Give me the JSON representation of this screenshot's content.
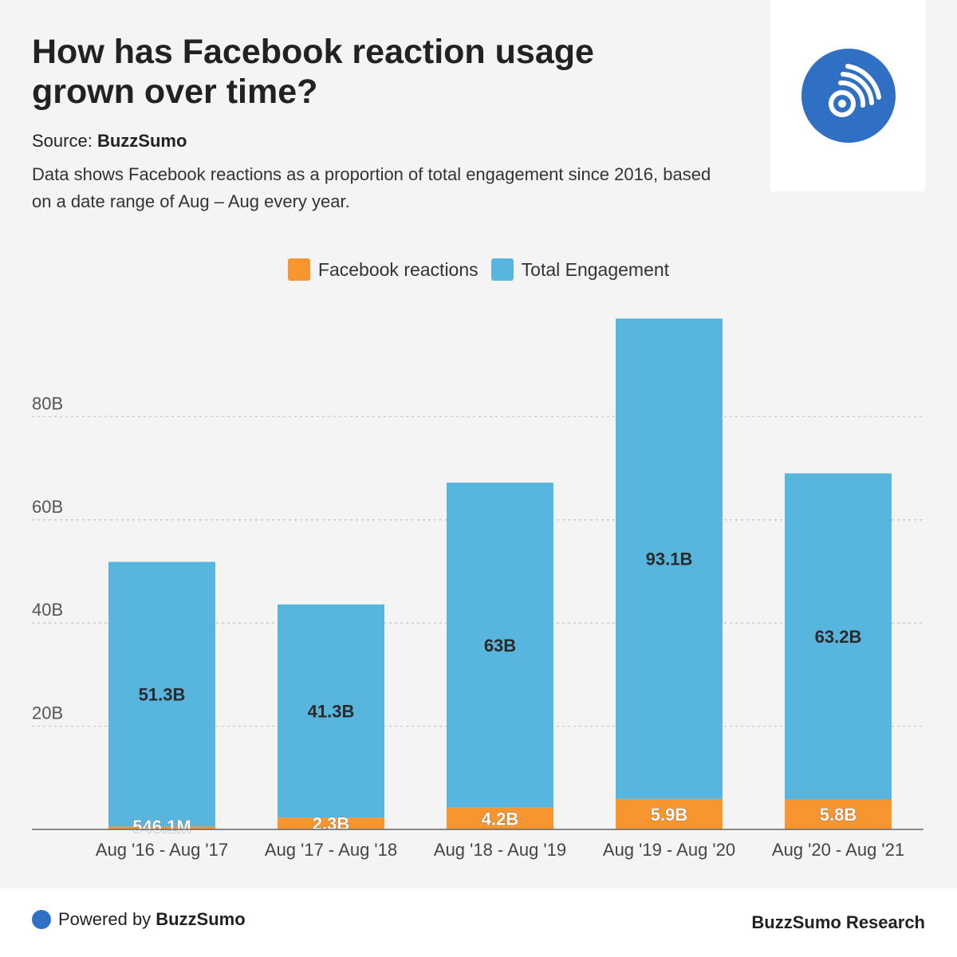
{
  "header": {
    "title": "How has Facebook reaction usage grown over time?",
    "source_label": "Source:",
    "source_name": "BuzzSumo",
    "description": "Data shows Facebook reactions as a proportion of total engagement since 2016, based on a date range of Aug – Aug every year."
  },
  "colors": {
    "reactions": "#f7952f",
    "engagement": "#58b6de",
    "logo": "#2f6fc4"
  },
  "chart_data": {
    "type": "bar",
    "stacked": true,
    "categories": [
      "Aug '16 - Aug '17",
      "Aug '17 - Aug '18",
      "Aug '18 - Aug '19",
      "Aug '19 - Aug '20",
      "Aug '20 - Aug '21"
    ],
    "series": [
      {
        "name": "Facebook reactions",
        "values": [
          0.5461,
          2.3,
          4.2,
          5.9,
          5.8
        ],
        "labels": [
          "546.1M",
          "2.3B",
          "4.2B",
          "5.9B",
          "5.8B"
        ]
      },
      {
        "name": "Total Engagement",
        "values": [
          51.3,
          41.3,
          63,
          93.1,
          63.2
        ],
        "labels": [
          "51.3B",
          "41.3B",
          "63B",
          "93.1B",
          "63.2B"
        ]
      }
    ],
    "y_ticks": [
      20,
      40,
      60,
      80
    ],
    "y_tick_labels": [
      "20B",
      "40B",
      "60B",
      "80B"
    ],
    "ylim": [
      0,
      100
    ],
    "grid": true,
    "legend": "top-center"
  },
  "footer": {
    "powered_label": "Powered by",
    "powered_brand": "BuzzSumo",
    "research": "BuzzSumo Research"
  }
}
